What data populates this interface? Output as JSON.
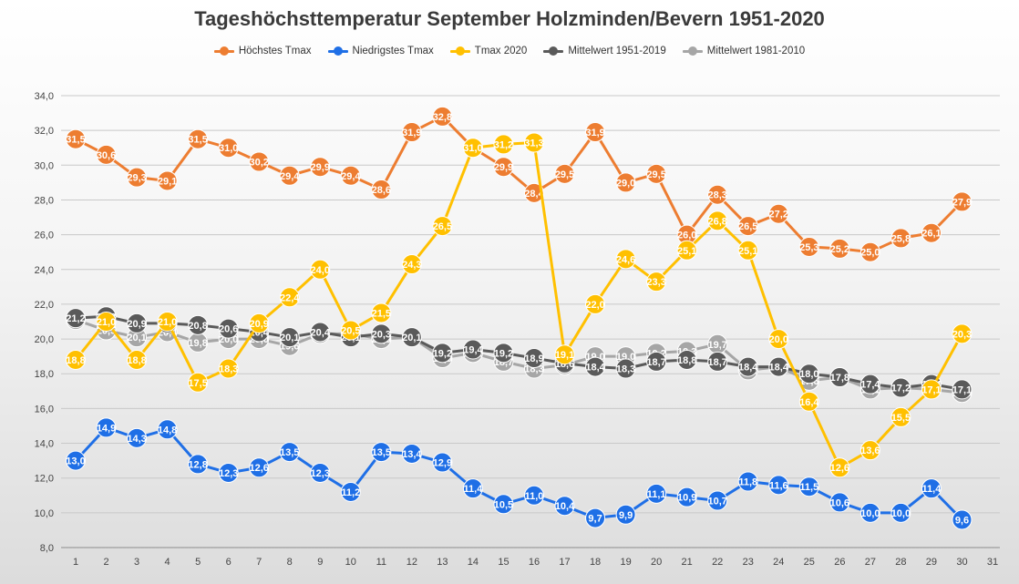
{
  "chart_data": {
    "type": "line",
    "title": "Tageshöchsttemperatur September Holzminden/Bevern 1951-2020",
    "xlabel": "",
    "ylabel": "",
    "xlim": [
      1,
      31
    ],
    "ylim": [
      8.0,
      34.0
    ],
    "y_step": 2.0,
    "grid": "horizontal",
    "legend_position": "top",
    "x_ticks": [
      1,
      2,
      3,
      4,
      5,
      6,
      7,
      8,
      9,
      10,
      11,
      12,
      13,
      14,
      15,
      16,
      17,
      18,
      19,
      20,
      21,
      22,
      23,
      24,
      25,
      26,
      27,
      28,
      29,
      30,
      31
    ],
    "y_tick_labels": [
      "8,0",
      "10,0",
      "12,0",
      "14,0",
      "16,0",
      "18,0",
      "20,0",
      "22,0",
      "24,0",
      "26,0",
      "28,0",
      "30,0",
      "32,0",
      "34,0"
    ],
    "series": [
      {
        "name": "Mittelwert 1981-2010",
        "color": "#a6a6a6",
        "values": [
          21.1,
          20.5,
          20.1,
          20.4,
          19.8,
          20.0,
          20.0,
          19.6,
          20.3,
          20.3,
          20.0,
          20.1,
          18.9,
          19.2,
          18.7,
          18.3,
          18.5,
          19.0,
          19.0,
          19.2,
          19.3,
          19.7,
          18.2,
          18.4,
          17.6,
          17.8,
          17.1,
          17.2,
          17.1,
          16.9
        ],
        "labels": [
          "21,1",
          "20,5",
          "20,1",
          "20,4",
          "19,8",
          "20,0",
          "20,0",
          "19,6",
          "20,3",
          "20,3",
          "20,0",
          "20,1",
          "18,9",
          "19,2",
          "18,7",
          "18,3",
          "18,5",
          "19,0",
          "19,0",
          "19,2",
          "19,3",
          "19,7",
          "18,2",
          "18,4",
          "17,6",
          "17,8",
          "17,1",
          "17,2",
          "17,1",
          "16,9"
        ]
      },
      {
        "name": "Mittelwert 1951-2019",
        "color": "#5a5a5a",
        "values": [
          21.2,
          21.3,
          20.9,
          20.9,
          20.8,
          20.6,
          20.4,
          20.1,
          20.4,
          20.1,
          20.3,
          20.1,
          19.2,
          19.4,
          19.2,
          18.9,
          18.6,
          18.4,
          18.3,
          18.7,
          18.8,
          18.7,
          18.4,
          18.4,
          18.0,
          17.8,
          17.4,
          17.2,
          17.4,
          17.1
        ],
        "labels": [
          "21,2",
          "21,3",
          "20,9",
          "20,9",
          "20,8",
          "20,6",
          "20,4",
          "20,1",
          "20,4",
          "20,1",
          "20,3",
          "20,1",
          "19,2",
          "19,4",
          "19,2",
          "18,9",
          "18,6",
          "18,4",
          "18,3",
          "18,7",
          "18,8",
          "18,7",
          "18,4",
          "18,4",
          "18,0",
          "17,8",
          "17,4",
          "17,2",
          "17,4",
          "17,1"
        ]
      },
      {
        "name": "Niedrigstes Tmax",
        "color": "#1f6fe6",
        "values": [
          13.0,
          14.9,
          14.3,
          14.8,
          12.8,
          12.3,
          12.6,
          13.5,
          12.3,
          11.2,
          13.5,
          13.4,
          12.9,
          11.4,
          10.5,
          11.0,
          10.4,
          9.7,
          9.9,
          11.1,
          10.9,
          10.7,
          11.8,
          11.6,
          11.5,
          10.6,
          10.0,
          10.0,
          11.4,
          9.6
        ],
        "labels": [
          "13,0",
          "14,9",
          "14,3",
          "14,8",
          "12,8",
          "12,3",
          "12,6",
          "13,5",
          "12,3",
          "11,2",
          "13,5",
          "13,4",
          "12,9",
          "11,4",
          "10,5",
          "11,0",
          "10,4",
          "9,7",
          "9,9",
          "11,1",
          "10,9",
          "10,7",
          "11,8",
          "11,6",
          "11,5",
          "10,6",
          "10,0",
          "10,0",
          "11,4",
          "9,6"
        ]
      },
      {
        "name": "Höchstes Tmax",
        "color": "#ed7d31",
        "values": [
          31.5,
          30.6,
          29.3,
          29.1,
          31.5,
          31.0,
          30.2,
          29.4,
          29.9,
          29.4,
          28.6,
          31.9,
          32.8,
          31.0,
          29.9,
          28.4,
          29.5,
          31.9,
          29.0,
          29.5,
          26.0,
          28.3,
          26.5,
          27.2,
          25.3,
          25.2,
          25.0,
          25.8,
          26.1,
          27.9
        ],
        "labels": [
          "31,5",
          "30,6",
          "29,3",
          "29,1",
          "31,5",
          "31,0",
          "30,2",
          "29,4",
          "29,9",
          "29,4",
          "28,6",
          "31,9",
          "32,8",
          "31,0",
          "29,9",
          "28,4",
          "29,5",
          "31,9",
          "29,0",
          "29,5",
          "26,0",
          "28,3",
          "26,5",
          "27,2",
          "25,3",
          "25,2",
          "25,0",
          "25,8",
          "26,1",
          "27,9"
        ]
      },
      {
        "name": "Tmax 2020",
        "color": "#ffc000",
        "values": [
          18.8,
          21.0,
          18.8,
          21.0,
          17.5,
          18.3,
          20.9,
          22.4,
          24.0,
          20.5,
          21.5,
          24.3,
          26.5,
          31.0,
          31.2,
          31.3,
          19.1,
          22.0,
          24.6,
          23.3,
          25.1,
          26.8,
          25.1,
          20.0,
          16.4,
          12.6,
          13.6,
          15.5,
          17.1,
          20.3
        ],
        "labels": [
          "18,8",
          "21,0",
          "18,8",
          "21,0",
          "17,5",
          "18,3",
          "20,9",
          "22,4",
          "24,0",
          "20,5",
          "21,5",
          "24,3",
          "26,5",
          "31,0",
          "31,2",
          "31,3",
          "19,1",
          "22,0",
          "24,6",
          "23,3",
          "25,1",
          "26,8",
          "25,1",
          "20,0",
          "16,4",
          "12,6",
          "13,6",
          "15,5",
          "17,1",
          "20,3"
        ]
      }
    ],
    "legend_order": [
      {
        "name": "Höchstes Tmax",
        "color": "#ed7d31"
      },
      {
        "name": "Niedrigstes Tmax",
        "color": "#1f6fe6"
      },
      {
        "name": "Tmax 2020",
        "color": "#ffc000"
      },
      {
        "name": "Mittelwert 1951-2019",
        "color": "#5a5a5a"
      },
      {
        "name": "Mittelwert 1981-2010",
        "color": "#a6a6a6"
      }
    ]
  }
}
